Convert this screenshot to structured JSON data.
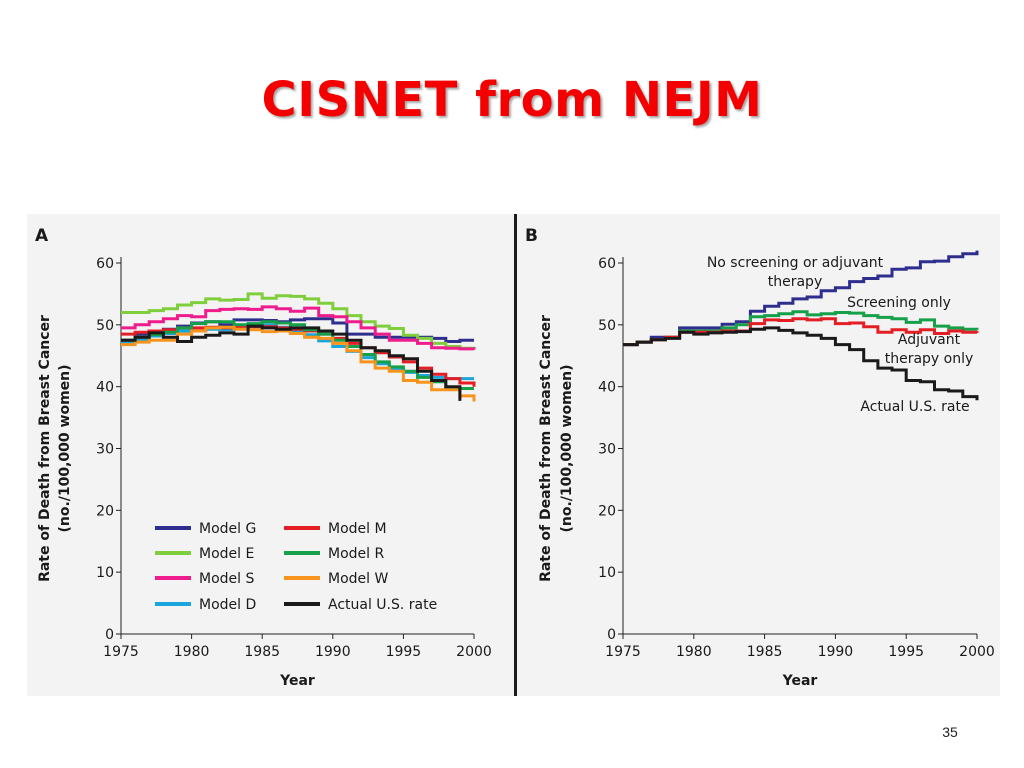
{
  "slide": {
    "title": "CISNET from NEJM",
    "page_number": "35"
  },
  "chart_data": [
    {
      "type": "line",
      "panel_label": "A",
      "xlabel": "Year",
      "ylabel": "Rate of Death from Breast Cancer",
      "ylabel_line2": "(no./100,000 women)",
      "xlim": [
        1975,
        2000
      ],
      "ylim": [
        0,
        60
      ],
      "xticks": [
        1975,
        1980,
        1985,
        1990,
        1995,
        2000
      ],
      "yticks": [
        0,
        10,
        20,
        30,
        40,
        50,
        60
      ],
      "grid": false,
      "legend": "bottom-left",
      "series": [
        {
          "name": "Model G",
          "color": "#2e2e8e",
          "x": [
            1975,
            1976,
            1977,
            1978,
            1979,
            1980,
            1981,
            1982,
            1983,
            1984,
            1985,
            1986,
            1987,
            1988,
            1989,
            1990,
            1991,
            1992,
            1993,
            1994,
            1995,
            1996,
            1997,
            1998,
            1999,
            2000
          ],
          "y": [
            47.5,
            48.5,
            49,
            49.3,
            49.8,
            50.3,
            50.5,
            50,
            50.8,
            50.8,
            50.7,
            50.5,
            50.8,
            51,
            51,
            50.3,
            48.5,
            48.5,
            48,
            48,
            48,
            48,
            47.8,
            47.3,
            47.5,
            47.5
          ]
        },
        {
          "name": "Model E",
          "color": "#7fcf3c",
          "x": [
            1975,
            1976,
            1977,
            1978,
            1979,
            1980,
            1981,
            1982,
            1983,
            1984,
            1985,
            1986,
            1987,
            1988,
            1989,
            1990,
            1991,
            1992,
            1993,
            1994,
            1995,
            1996,
            1997,
            1998,
            1999,
            2000
          ],
          "y": [
            52,
            52,
            52.3,
            52.6,
            53.2,
            53.6,
            54.2,
            54,
            54.1,
            55,
            54.3,
            54.7,
            54.6,
            54.2,
            53.5,
            52.6,
            51.5,
            50.5,
            49.8,
            49.4,
            48.3,
            47.8,
            47,
            46.5,
            46.2,
            46
          ]
        },
        {
          "name": "Model S",
          "color": "#ee1c8c",
          "x": [
            1975,
            1976,
            1977,
            1978,
            1979,
            1980,
            1981,
            1982,
            1983,
            1984,
            1985,
            1986,
            1987,
            1988,
            1989,
            1990,
            1991,
            1992,
            1993,
            1994,
            1995,
            1996,
            1997,
            1998,
            1999,
            2000
          ],
          "y": [
            49.5,
            50,
            50.5,
            51,
            51.5,
            51.3,
            52.3,
            52.5,
            52.6,
            52.5,
            52.9,
            52.6,
            52.2,
            52.7,
            51.5,
            51.3,
            50.5,
            49.5,
            48.5,
            47.5,
            47.5,
            47,
            46.3,
            46.2,
            46.1,
            46
          ]
        },
        {
          "name": "Model D",
          "color": "#1aa6dc",
          "x": [
            1975,
            1976,
            1977,
            1978,
            1979,
            1980,
            1981,
            1982,
            1983,
            1984,
            1985,
            1986,
            1987,
            1988,
            1989,
            1990,
            1991,
            1992,
            1993,
            1994,
            1995,
            1996,
            1997,
            1998,
            1999,
            2000
          ],
          "y": [
            47,
            47.6,
            48.2,
            48.6,
            49,
            49,
            49.3,
            49.2,
            49.5,
            49.8,
            50,
            49.6,
            49,
            48.4,
            47.4,
            46.5,
            45.7,
            44.7,
            43.7,
            42.8,
            42.3,
            41.8,
            41.5,
            41.3,
            41.3,
            41.3
          ]
        },
        {
          "name": "Model M",
          "color": "#e31e24",
          "x": [
            1975,
            1976,
            1977,
            1978,
            1979,
            1980,
            1981,
            1982,
            1983,
            1984,
            1985,
            1986,
            1987,
            1988,
            1989,
            1990,
            1991,
            1992,
            1993,
            1994,
            1995,
            1996,
            1997,
            1998,
            1999,
            2000
          ],
          "y": [
            48.5,
            48.8,
            49,
            49.2,
            49.5,
            49.5,
            49.6,
            49.5,
            49.6,
            49.7,
            49.7,
            49.5,
            49.3,
            49,
            48.5,
            47.8,
            47,
            46.3,
            45.5,
            44.8,
            44,
            43,
            42,
            41.3,
            40.6,
            40
          ]
        },
        {
          "name": "Model R",
          "color": "#17a04a",
          "x": [
            1975,
            1976,
            1977,
            1978,
            1979,
            1980,
            1981,
            1982,
            1983,
            1984,
            1985,
            1986,
            1987,
            1988,
            1989,
            1990,
            1991,
            1992,
            1993,
            1994,
            1995,
            1996,
            1997,
            1998,
            1999,
            2000
          ],
          "y": [
            47.5,
            48,
            48.4,
            48.8,
            49.5,
            50.2,
            50.5,
            50.5,
            50,
            50.2,
            50.5,
            50.3,
            50,
            49.2,
            48.5,
            47.5,
            46.5,
            45.2,
            44,
            43.2,
            42.5,
            41.5,
            40.8,
            39.8,
            39.7,
            39.7
          ]
        },
        {
          "name": "Model W",
          "color": "#f7941d",
          "x": [
            1975,
            1976,
            1977,
            1978,
            1979,
            1980,
            1981,
            1982,
            1983,
            1984,
            1985,
            1986,
            1987,
            1988,
            1989,
            1990,
            1991,
            1992,
            1993,
            1994,
            1995,
            1996,
            1997,
            1998,
            1999,
            2000
          ],
          "y": [
            46.8,
            47.2,
            47.5,
            47.5,
            48.5,
            49,
            49.5,
            49.6,
            49.3,
            49.2,
            48.9,
            49,
            48.6,
            48,
            47.8,
            47,
            45.8,
            44,
            43,
            42.5,
            41,
            40.7,
            39.5,
            39.5,
            38.5,
            37.6
          ]
        },
        {
          "name": "Actual U.S. rate",
          "color": "#1a1a1a",
          "x": [
            1975,
            1976,
            1977,
            1978,
            1979,
            1980,
            1981,
            1982,
            1983,
            1984,
            1985,
            1986,
            1987,
            1988,
            1989,
            1990,
            1991,
            1992,
            1993,
            1994,
            1995,
            1996,
            1997,
            1998,
            1999
          ],
          "y": [
            47.5,
            48,
            48.7,
            48,
            47.3,
            48,
            48.3,
            48.7,
            48.5,
            49.8,
            49.5,
            49.3,
            49.5,
            49.5,
            49,
            48.5,
            47.5,
            46.3,
            45.8,
            45,
            44.5,
            42.5,
            41,
            40,
            37.7
          ]
        }
      ]
    },
    {
      "type": "line",
      "panel_label": "B",
      "xlabel": "Year",
      "ylabel": "Rate of Death from Breast Cancer",
      "ylabel_line2": "(no./100,000 women)",
      "xlim": [
        1975,
        2000
      ],
      "ylim": [
        0,
        60
      ],
      "xticks": [
        1975,
        1980,
        1985,
        1990,
        1995,
        2000
      ],
      "yticks": [
        0,
        10,
        20,
        30,
        40,
        50,
        60
      ],
      "grid": false,
      "legend": "inline labels",
      "series": [
        {
          "name": "No screening or adjuvant therapy",
          "color": "#2e2e8e",
          "label_lines": [
            "No screening or adjuvant",
            "therapy"
          ],
          "x": [
            1975,
            1976,
            1977,
            1978,
            1979,
            1980,
            1981,
            1982,
            1983,
            1984,
            1985,
            1986,
            1987,
            1988,
            1989,
            1990,
            1991,
            1992,
            1993,
            1994,
            1995,
            1996,
            1997,
            1998,
            1999,
            2000
          ],
          "y": [
            46.8,
            47.2,
            48,
            48,
            49.5,
            49.5,
            49.5,
            50.1,
            50.5,
            52.2,
            53,
            53.5,
            54.2,
            54.5,
            55.5,
            56,
            57,
            57.5,
            57.9,
            59,
            59.2,
            60.2,
            60.3,
            61,
            61.5,
            62
          ]
        },
        {
          "name": "Screening only",
          "color": "#17a04a",
          "label_lines": [
            "Screening only"
          ],
          "x": [
            1975,
            1976,
            1977,
            1978,
            1979,
            1980,
            1981,
            1982,
            1983,
            1984,
            1985,
            1986,
            1987,
            1988,
            1989,
            1990,
            1991,
            1992,
            1993,
            1994,
            1995,
            1996,
            1997,
            1998,
            1999,
            2000
          ],
          "y": [
            46.8,
            47.2,
            47.6,
            48,
            49,
            49,
            49,
            49.5,
            50,
            51.3,
            51.5,
            51.8,
            52.1,
            51.6,
            51.8,
            52,
            51.9,
            51.5,
            51.2,
            51,
            50.4,
            50.8,
            49.8,
            49.5,
            49.3,
            49.2
          ]
        },
        {
          "name": "Adjuvant therapy only",
          "color": "#e31e24",
          "label_lines": [
            "Adjuvant",
            "therapy only"
          ],
          "x": [
            1975,
            1976,
            1977,
            1978,
            1979,
            1980,
            1981,
            1982,
            1983,
            1984,
            1985,
            1986,
            1987,
            1988,
            1989,
            1990,
            1991,
            1992,
            1993,
            1994,
            1995,
            1996,
            1997,
            1998,
            1999,
            2000
          ],
          "y": [
            46.8,
            47.2,
            47.6,
            48,
            48.8,
            48.8,
            48.8,
            49,
            49,
            50.2,
            50.8,
            50.7,
            51,
            50.8,
            51,
            50.2,
            50.3,
            49.7,
            48.8,
            49.2,
            48.8,
            49.2,
            48.6,
            49,
            48.8,
            48.7
          ]
        },
        {
          "name": "Actual U.S. rate",
          "color": "#1a1a1a",
          "label_lines": [
            "Actual U.S. rate"
          ],
          "x": [
            1975,
            1976,
            1977,
            1978,
            1979,
            1980,
            1981,
            1982,
            1983,
            1984,
            1985,
            1986,
            1987,
            1988,
            1989,
            1990,
            1991,
            1992,
            1993,
            1994,
            1995,
            1996,
            1997,
            1998,
            1999,
            2000
          ],
          "y": [
            46.8,
            47.2,
            47.6,
            47.8,
            48.8,
            48.5,
            48.7,
            48.8,
            48.9,
            49.3,
            49.5,
            49.1,
            48.7,
            48.3,
            47.8,
            46.8,
            46,
            44.2,
            43,
            42.7,
            41,
            40.8,
            39.5,
            39.3,
            38.4,
            37.8
          ]
        }
      ]
    }
  ]
}
